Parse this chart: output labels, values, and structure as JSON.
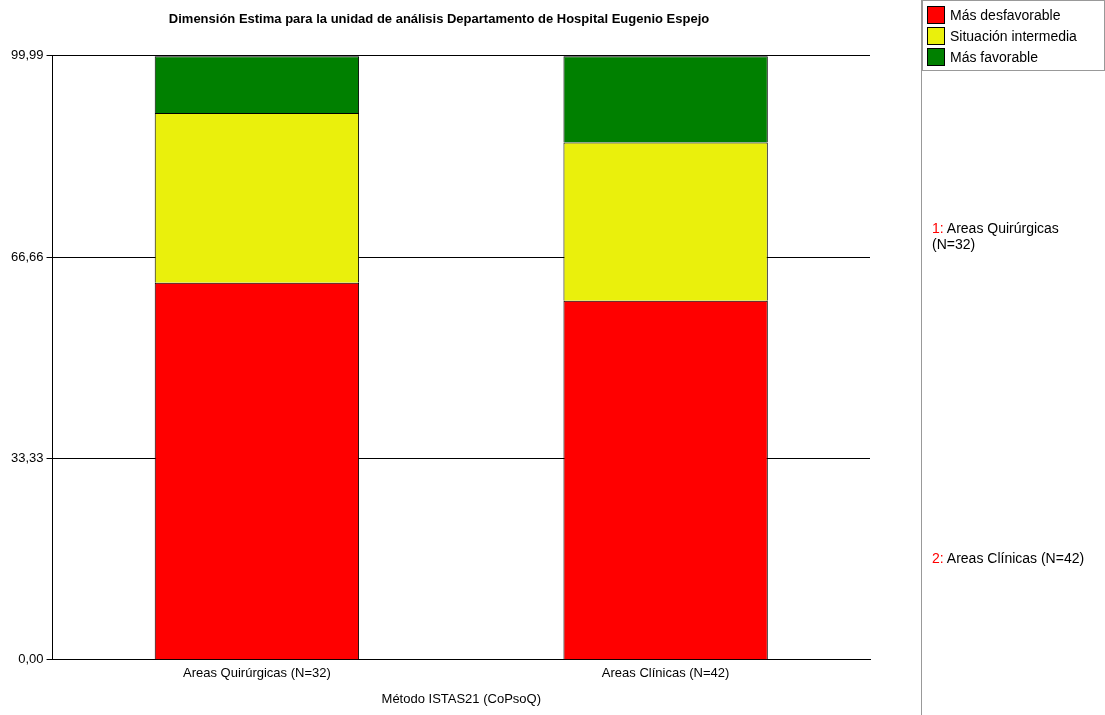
{
  "chart_data": {
    "type": "bar",
    "title": "Dimensión Estima para la unidad de análisis Departamento de Hospital Eugenio Espejo",
    "xlabel": "Método ISTAS21 (CoPsoQ)",
    "categories": [
      "Areas Quirúrgicas (N=32)",
      "Areas Clínicas (N=42)"
    ],
    "stacked": true,
    "series": [
      {
        "name": "Más desfavorable",
        "color": "#ff0000",
        "values": [
          62.4,
          59.4
        ]
      },
      {
        "name": "Situación intermedia",
        "color": "#eaf00c",
        "values": [
          28.1,
          26.2
        ]
      },
      {
        "name": "Más favorable",
        "color": "#008000",
        "values": [
          9.4,
          14.3
        ]
      }
    ],
    "ylim": [
      0,
      99.99
    ],
    "yticks": [
      {
        "value": 0,
        "label": "0,00"
      },
      {
        "value": 33.33,
        "label": "33,33"
      },
      {
        "value": 66.66,
        "label": "66,66"
      },
      {
        "value": 99.99,
        "label": "99,99"
      }
    ],
    "grid": "y",
    "legend": "top right",
    "annotations": [
      "1: Areas Quirúrgicas (N=32)",
      "2: Areas Clínicas (N=42)"
    ]
  }
}
